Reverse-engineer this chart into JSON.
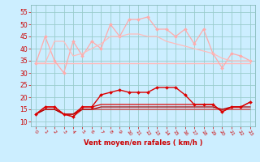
{
  "x": [
    0,
    1,
    2,
    3,
    4,
    5,
    6,
    7,
    8,
    9,
    10,
    11,
    12,
    13,
    14,
    15,
    16,
    17,
    18,
    19,
    20,
    21,
    22,
    23
  ],
  "bg_color": "#cceeff",
  "grid_color": "#99cccc",
  "xlabel": "Vent moyen/en rafales ( km/h )",
  "xlabel_color": "#cc0000",
  "xlabel_fontsize": 6.0,
  "tick_color": "#cc0000",
  "ytick_fontsize": 5.5,
  "xtick_fontsize": 4.5,
  "yticks": [
    10,
    15,
    20,
    25,
    30,
    35,
    40,
    45,
    50,
    55
  ],
  "ylim": [
    8,
    58
  ],
  "xlim": [
    -0.5,
    23.5
  ],
  "lines": [
    {
      "y": [
        34,
        34,
        34,
        34,
        34,
        34,
        34,
        34,
        34,
        34,
        34,
        34,
        34,
        34,
        34,
        34,
        34,
        34,
        34,
        34,
        34,
        34,
        34,
        34
      ],
      "color": "#ffbbbb",
      "lw": 1.0,
      "marker": null,
      "zorder": 1
    },
    {
      "y": [
        34,
        45,
        35,
        30,
        43,
        37,
        43,
        40,
        50,
        45,
        52,
        52,
        53,
        48,
        48,
        45,
        48,
        42,
        48,
        38,
        32,
        38,
        37,
        35
      ],
      "color": "#ffaaaa",
      "lw": 0.9,
      "marker": "D",
      "markersize": 2.0,
      "zorder": 2
    },
    {
      "y": [
        34,
        34,
        43,
        43,
        37,
        38,
        40,
        42,
        45,
        45,
        46,
        46,
        45,
        45,
        43,
        42,
        41,
        40,
        39,
        38,
        36,
        35,
        35,
        35
      ],
      "color": "#ffbbbb",
      "lw": 0.9,
      "marker": null,
      "zorder": 2
    },
    {
      "y": [
        13,
        16,
        16,
        13,
        12,
        16,
        16,
        21,
        22,
        23,
        22,
        22,
        22,
        24,
        24,
        24,
        21,
        17,
        17,
        17,
        14,
        16,
        16,
        18
      ],
      "color": "#dd0000",
      "lw": 1.0,
      "marker": "D",
      "markersize": 2.0,
      "zorder": 4
    },
    {
      "y": [
        13,
        16,
        16,
        13,
        13,
        16,
        16,
        17,
        17,
        17,
        17,
        17,
        17,
        17,
        17,
        17,
        17,
        17,
        17,
        17,
        14,
        16,
        16,
        18
      ],
      "color": "#dd0000",
      "lw": 0.9,
      "marker": null,
      "zorder": 3
    },
    {
      "y": [
        13,
        15,
        15,
        13,
        13,
        15,
        15,
        16,
        16,
        16,
        16,
        16,
        16,
        16,
        16,
        16,
        16,
        16,
        16,
        16,
        15,
        16,
        16,
        16
      ],
      "color": "#aa0000",
      "lw": 0.9,
      "marker": null,
      "zorder": 3
    },
    {
      "y": [
        13,
        15,
        15,
        13,
        12,
        15,
        15,
        15,
        15,
        15,
        15,
        15,
        15,
        15,
        15,
        15,
        15,
        15,
        15,
        15,
        15,
        15,
        15,
        15
      ],
      "color": "#dd2222",
      "lw": 0.8,
      "marker": null,
      "zorder": 2
    }
  ]
}
